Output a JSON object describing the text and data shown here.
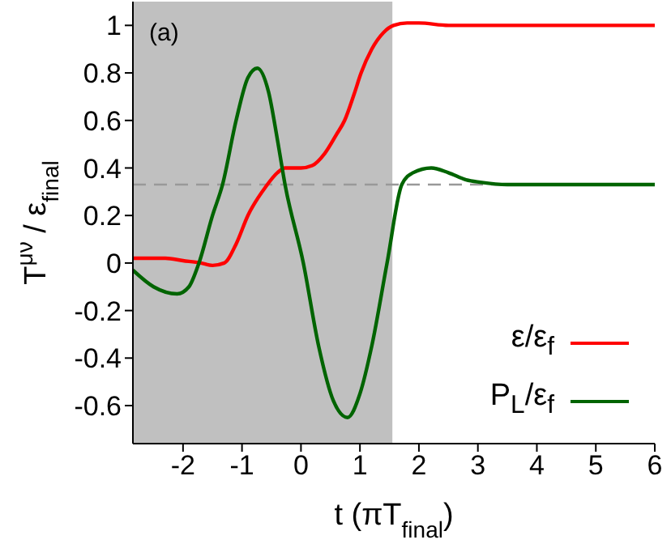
{
  "chart_data": {
    "type": "line",
    "xlabel": "t (πT$_{final}$)",
    "ylabel": "T$^{μν}$ / ε$_{final}$",
    "annotations": [
      "(a)"
    ],
    "xlim": [
      -2.85,
      6
    ],
    "ylim": [
      -0.76,
      1.1
    ],
    "xticks": [
      -2,
      -1,
      0,
      1,
      2,
      3,
      4,
      5,
      6
    ],
    "yticks": [
      -0.6,
      -0.4,
      -0.2,
      0,
      0.2,
      0.4,
      0.6,
      0.8,
      1
    ],
    "grid": false,
    "legend": "bottom right",
    "marker": "none",
    "line_style": "solid",
    "bands": [
      {
        "axis": "x",
        "from": -2.85,
        "to": 1.55,
        "color": "#c0c0c0"
      }
    ],
    "ref_lines": [
      {
        "axis": "y",
        "value": 0.33,
        "color": "#999999",
        "line_style": "dashed"
      }
    ],
    "series": [
      {
        "name": "ε/ε$_{f}$",
        "color": "#ff0000",
        "x": [
          -2.85,
          -2.3,
          -2,
          -1.7,
          -1.5,
          -1.3,
          -1.1,
          -0.9,
          -0.6,
          -0.4,
          -0.27,
          0,
          0.19,
          0.4,
          0.6,
          0.74,
          0.9,
          1.02,
          1.2,
          1.4,
          1.57,
          1.8,
          2,
          2.5,
          3,
          4,
          5,
          6
        ],
        "values": [
          0.02,
          0.02,
          0.01,
          0,
          -0.01,
          0,
          0.08,
          0.2,
          0.32,
          0.38,
          0.4,
          0.4,
          0.41,
          0.46,
          0.54,
          0.6,
          0.71,
          0.8,
          0.9,
          0.97,
          1,
          1.01,
          1.01,
          1,
          1,
          1,
          1,
          1
        ]
      },
      {
        "name": "P$_{L}$/ε$_{f}$",
        "color": "#006400",
        "x": [
          -2.85,
          -2.5,
          -2.1,
          -1.9,
          -1.73,
          -1.5,
          -1.33,
          -1.1,
          -0.9,
          -0.74,
          -0.55,
          -0.4,
          -0.27,
          0.04,
          0.3,
          0.55,
          0.79,
          1,
          1.2,
          1.46,
          1.71,
          1.9,
          2.21,
          2.5,
          2.8,
          3.04,
          3.5,
          4,
          5,
          6
        ],
        "values": [
          -0.03,
          -0.1,
          -0.13,
          -0.1,
          0,
          0.2,
          0.33,
          0.6,
          0.78,
          0.82,
          0.72,
          0.52,
          0.33,
          0,
          -0.35,
          -0.58,
          -0.65,
          -0.55,
          -0.35,
          0,
          0.33,
          0.38,
          0.4,
          0.38,
          0.35,
          0.34,
          0.33,
          0.33,
          0.33,
          0.33
        ]
      }
    ]
  }
}
